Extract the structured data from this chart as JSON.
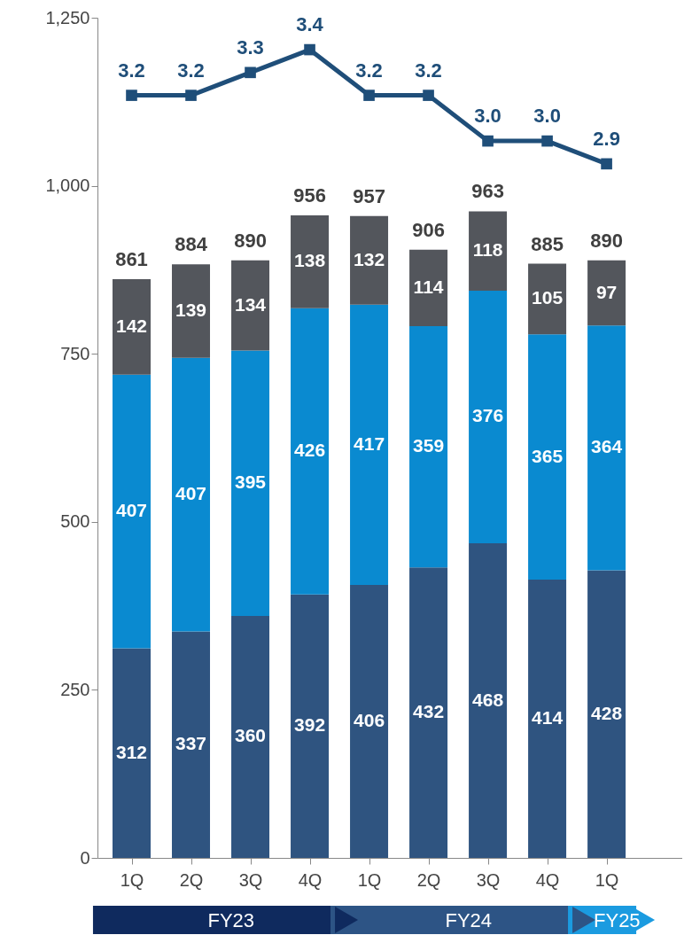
{
  "chart_data": {
    "type": "bar",
    "stacked": true,
    "data_labels": true,
    "marker": "square",
    "line_style": "solid",
    "categories": [
      "1Q",
      "2Q",
      "3Q",
      "4Q",
      "1Q",
      "2Q",
      "3Q",
      "4Q",
      "1Q"
    ],
    "ylim": [
      0,
      1250
    ],
    "yticks": [
      0,
      250,
      500,
      750,
      {
        "value": 1000,
        "label": "1,000"
      },
      {
        "value": 1250,
        "label": "1,250"
      }
    ],
    "y2lim": [
      -0.14,
      3.54
    ],
    "series": [
      {
        "color": "#2f5480",
        "values": [
          312,
          337,
          360,
          392,
          406,
          432,
          468,
          414,
          428
        ]
      },
      {
        "color": "#0a8ad0",
        "values": [
          407,
          407,
          395,
          426,
          417,
          359,
          376,
          365,
          364
        ]
      },
      {
        "color": "#53565c",
        "values": [
          142,
          139,
          134,
          138,
          132,
          114,
          118,
          105,
          97
        ]
      },
      {
        "type": "line",
        "axis": "y2",
        "color": "#1f4e79",
        "values": [
          3.2,
          3.2,
          3.3,
          3.4,
          3.2,
          3.2,
          3.0,
          3.0,
          2.9
        ],
        "value_labels": [
          "3.2",
          "3.2",
          "3.3",
          "3.4",
          "3.2",
          "3.2",
          "3.0",
          "3.0",
          "2.9"
        ]
      }
    ],
    "totals": [
      "861",
      "884",
      "890",
      "956",
      "957",
      "906",
      "963",
      "885",
      "890"
    ],
    "annotations": [
      "FY23",
      "FY24",
      "FY25"
    ]
  }
}
